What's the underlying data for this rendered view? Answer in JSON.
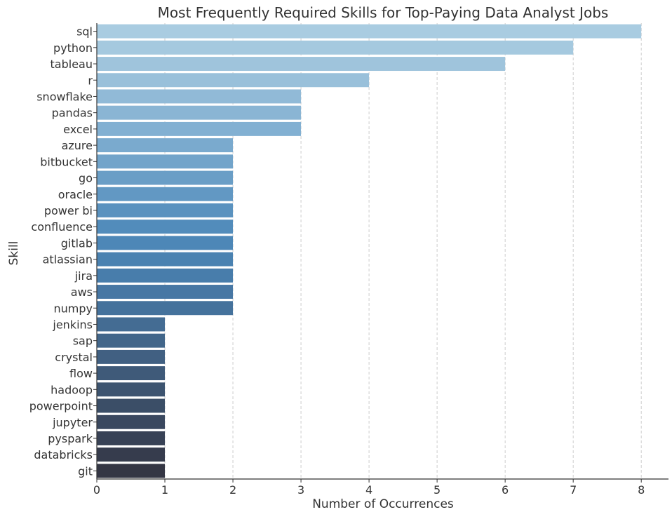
{
  "chart_data": {
    "type": "bar",
    "orientation": "horizontal",
    "title": "Most Frequently Required Skills for Top-Paying Data Analyst Jobs",
    "xlabel": "Number of Occurrences",
    "ylabel": "Skill",
    "xlim": [
      0,
      8.4
    ],
    "xticks": [
      0,
      1,
      2,
      3,
      4,
      5,
      6,
      7,
      8
    ],
    "grid": "vertical dashed",
    "color_scale": "blues_d (light to dark, top to bottom)",
    "categories": [
      "sql",
      "python",
      "tableau",
      "r",
      "snowflake",
      "pandas",
      "excel",
      "azure",
      "bitbucket",
      "go",
      "oracle",
      "power bi",
      "confluence",
      "gitlab",
      "atlassian",
      "jira",
      "aws",
      "numpy",
      "jenkins",
      "sap",
      "crystal",
      "flow",
      "hadoop",
      "powerpoint",
      "jupyter",
      "pyspark",
      "databricks",
      "git"
    ],
    "values": [
      8,
      7,
      6,
      4,
      3,
      3,
      3,
      2,
      2,
      2,
      2,
      2,
      2,
      2,
      2,
      2,
      2,
      2,
      1,
      1,
      1,
      1,
      1,
      1,
      1,
      1,
      1,
      1
    ],
    "colors": [
      "#a9cce1",
      "#a5c9df",
      "#9fc4dc",
      "#99c0da",
      "#91bad7",
      "#8ab5d4",
      "#82b0d2",
      "#7aaace",
      "#72a4ca",
      "#6a9ec6",
      "#6298c3",
      "#5a92bf",
      "#528cbb",
      "#4d87b7",
      "#4a82b1",
      "#487dab",
      "#4777a4",
      "#45729c",
      "#446c93",
      "#42668a",
      "#416082",
      "#3f5a79",
      "#3d5470",
      "#3b4e67",
      "#3a485f",
      "#384256",
      "#363c4d",
      "#343644"
    ]
  }
}
